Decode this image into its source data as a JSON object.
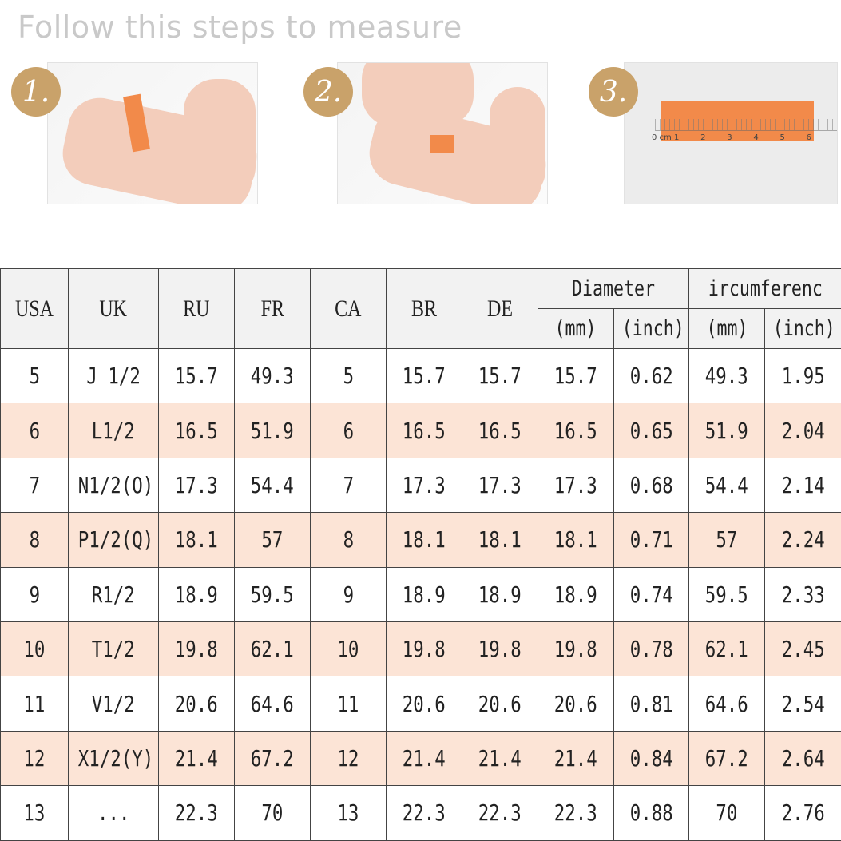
{
  "title": "Follow this steps to measure",
  "steps": [
    {
      "number": "1."
    },
    {
      "number": "2."
    },
    {
      "number": "3.",
      "ruler_labels": [
        "0 cm 1",
        "2",
        "3",
        "4",
        "5",
        "6"
      ]
    }
  ],
  "colors": {
    "badge": "#c9a26a",
    "tape": "#f28a4a",
    "row_highlight": "#fce4d6",
    "header_bg": "#f2f2f2"
  },
  "table": {
    "headers": [
      "USA",
      "UK",
      "RU",
      "FR",
      "CA",
      "BR",
      "DE"
    ],
    "group_headers": [
      "Diameter",
      "ircumferenc"
    ],
    "sub_headers": [
      "(mm)",
      "(inch)",
      "(mm)",
      "(inch)"
    ],
    "rows": [
      [
        "5",
        "J 1/2",
        "15.7",
        "49.3",
        "5",
        "15.7",
        "15.7",
        "15.7",
        "0.62",
        "49.3",
        "1.95"
      ],
      [
        "6",
        "L1/2",
        "16.5",
        "51.9",
        "6",
        "16.5",
        "16.5",
        "16.5",
        "0.65",
        "51.9",
        "2.04"
      ],
      [
        "7",
        "N1/2(O)",
        "17.3",
        "54.4",
        "7",
        "17.3",
        "17.3",
        "17.3",
        "0.68",
        "54.4",
        "2.14"
      ],
      [
        "8",
        "P1/2(Q)",
        "18.1",
        "57",
        "8",
        "18.1",
        "18.1",
        "18.1",
        "0.71",
        "57",
        "2.24"
      ],
      [
        "9",
        "R1/2",
        "18.9",
        "59.5",
        "9",
        "18.9",
        "18.9",
        "18.9",
        "0.74",
        "59.5",
        "2.33"
      ],
      [
        "10",
        "T1/2",
        "19.8",
        "62.1",
        "10",
        "19.8",
        "19.8",
        "19.8",
        "0.78",
        "62.1",
        "2.45"
      ],
      [
        "11",
        "V1/2",
        "20.6",
        "64.6",
        "11",
        "20.6",
        "20.6",
        "20.6",
        "0.81",
        "64.6",
        "2.54"
      ],
      [
        "12",
        "X1/2(Y)",
        "21.4",
        "67.2",
        "12",
        "21.4",
        "21.4",
        "21.4",
        "0.84",
        "67.2",
        "2.64"
      ],
      [
        "13",
        "...",
        "22.3",
        "70",
        "13",
        "22.3",
        "22.3",
        "22.3",
        "0.88",
        "70",
        "2.76"
      ]
    ]
  }
}
